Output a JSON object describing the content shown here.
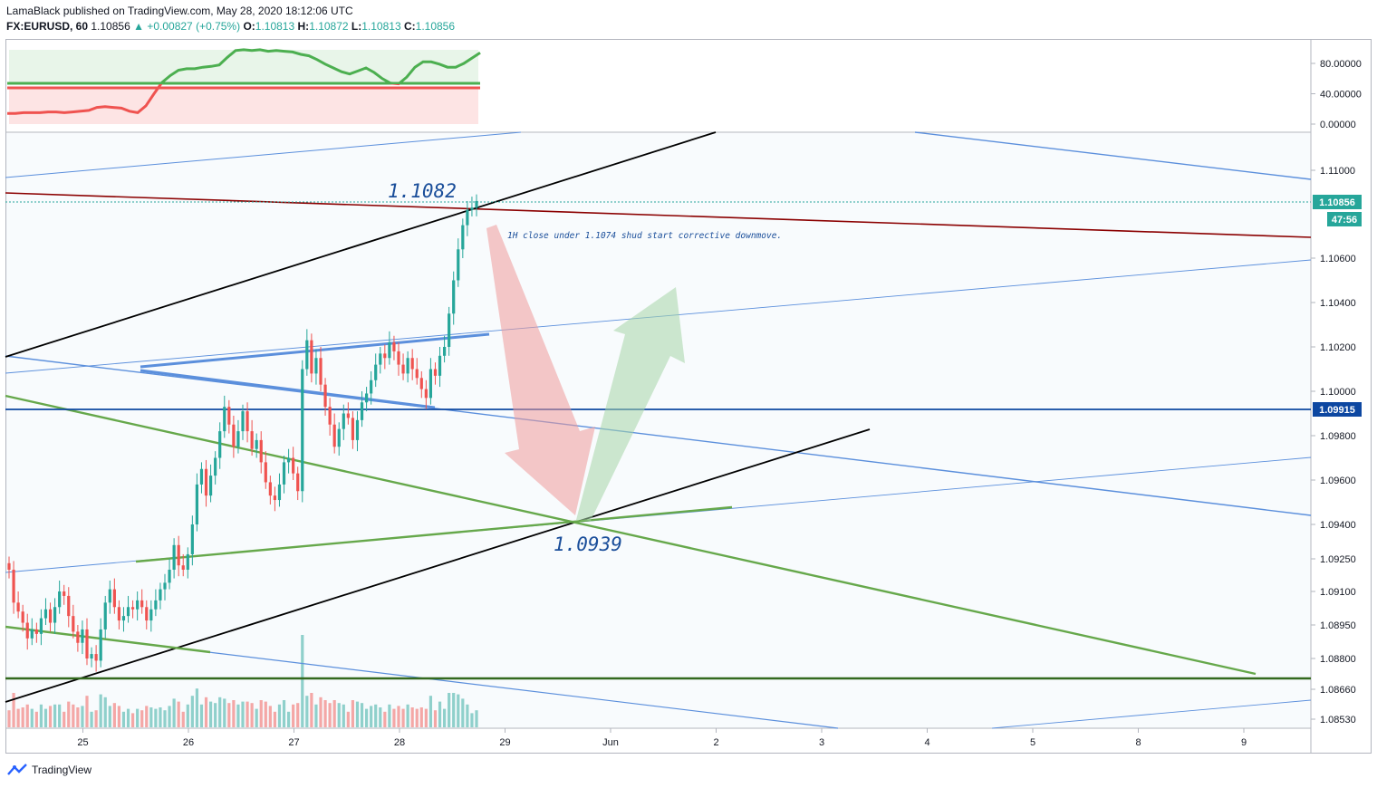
{
  "header": {
    "line1": "LamaBlack published on TradingView.com, May 28, 2020 18:12:06 UTC",
    "symbol": "FX:EURUSD, 60",
    "last": "1.10856",
    "change": "+0.00827 (+0.75%)",
    "o_label": "O:",
    "o": "1.10813",
    "h_label": "H:",
    "h": "1.10872",
    "l_label": "L:",
    "l": "1.10813",
    "c_label": "C:",
    "c": "1.10856"
  },
  "footer": {
    "brand": "TradingView"
  },
  "colors": {
    "up": "#26a69a",
    "down": "#ef5350",
    "channel_black": "#000000",
    "trend_blue": "#5b8fdc",
    "trend_green": "#66a84b",
    "resistance_red": "#8b0000",
    "level_blue": "#0d47a1"
  },
  "chart_data": [
    {
      "type": "line",
      "pane": "oscillator",
      "y_ticks": [
        "80.00000",
        "40.00000",
        "0.00000"
      ],
      "ylim": [
        -5,
        105
      ],
      "series": [
        {
          "values": [
            14,
            14,
            15,
            15,
            15,
            16,
            16,
            15,
            16,
            17,
            18,
            22,
            23,
            22,
            21,
            17,
            15,
            24,
            40,
            55,
            64,
            71,
            73,
            73,
            75,
            76,
            78,
            88,
            97,
            98,
            97,
            98,
            96,
            97,
            96,
            95,
            92,
            90,
            85,
            79,
            74,
            69,
            66,
            70,
            74,
            68,
            60,
            54,
            53,
            62,
            75,
            82,
            82,
            79,
            75,
            75,
            80,
            87,
            94
          ]
        }
      ]
    },
    {
      "type": "candlestick",
      "pane": "price",
      "title": "FX:EURUSD, 60",
      "x_ticks": [
        "25",
        "26",
        "27",
        "28",
        "29",
        "Jun",
        "2",
        "3",
        "4",
        "5",
        "8",
        "9"
      ],
      "y_ticks": [
        "1.11000",
        "1.10600",
        "1.10400",
        "1.10200",
        "1.10000",
        "1.09800",
        "1.09600",
        "1.09400",
        "1.09250",
        "1.09100",
        "1.08950",
        "1.08800",
        "1.08660",
        "1.08530"
      ],
      "last_price_label": "1.10856",
      "countdown_label": "47:56",
      "level_label": "1.09915",
      "annotations": {
        "top_value": "1.1082",
        "bottom_value": "1.0939",
        "note": "1H close under 1.1074 shud start corrective downmove."
      },
      "candles_summary": {
        "start": 1.092,
        "low": 1.0872,
        "high": 1.1087,
        "last": 1.10856
      },
      "candle_closes": [
        1.092,
        1.0905,
        1.0901,
        1.0896,
        1.0889,
        1.0893,
        1.0891,
        1.0898,
        1.0902,
        1.0896,
        1.0903,
        1.091,
        1.0908,
        1.0899,
        1.0892,
        1.0887,
        1.0893,
        1.088,
        1.0882,
        1.0879,
        1.0893,
        1.0905,
        1.0911,
        1.0903,
        1.0897,
        1.0899,
        1.0903,
        1.0902,
        1.0906,
        1.0903,
        1.0897,
        1.0902,
        1.0906,
        1.0911,
        1.0914,
        1.092,
        1.0931,
        1.0922,
        1.092,
        1.0927,
        1.094,
        1.0958,
        1.0965,
        1.0953,
        1.0962,
        1.097,
        1.0982,
        1.0993,
        1.0985,
        1.0975,
        1.0982,
        1.0991,
        1.0982,
        1.0974,
        1.0978,
        1.0968,
        1.0959,
        1.0953,
        1.0951,
        1.0958,
        1.0968,
        1.097,
        1.0963,
        1.0955,
        1.101,
        1.1023,
        1.1008,
        1.1015,
        1.1003,
        1.0993,
        1.0985,
        1.0975,
        1.0983,
        1.099,
        1.0988,
        1.0978,
        1.0987,
        1.0995,
        1.0999,
        1.1005,
        1.1012,
        1.1017,
        1.1015,
        1.1022,
        1.1018,
        1.1012,
        1.1008,
        1.1015,
        1.101,
        1.1006,
        1.1001,
        1.0997,
        1.101,
        1.1007,
        1.1016,
        1.102,
        1.1035,
        1.105,
        1.1064,
        1.1075,
        1.1082,
        1.1083,
        1.1086
      ]
    }
  ]
}
